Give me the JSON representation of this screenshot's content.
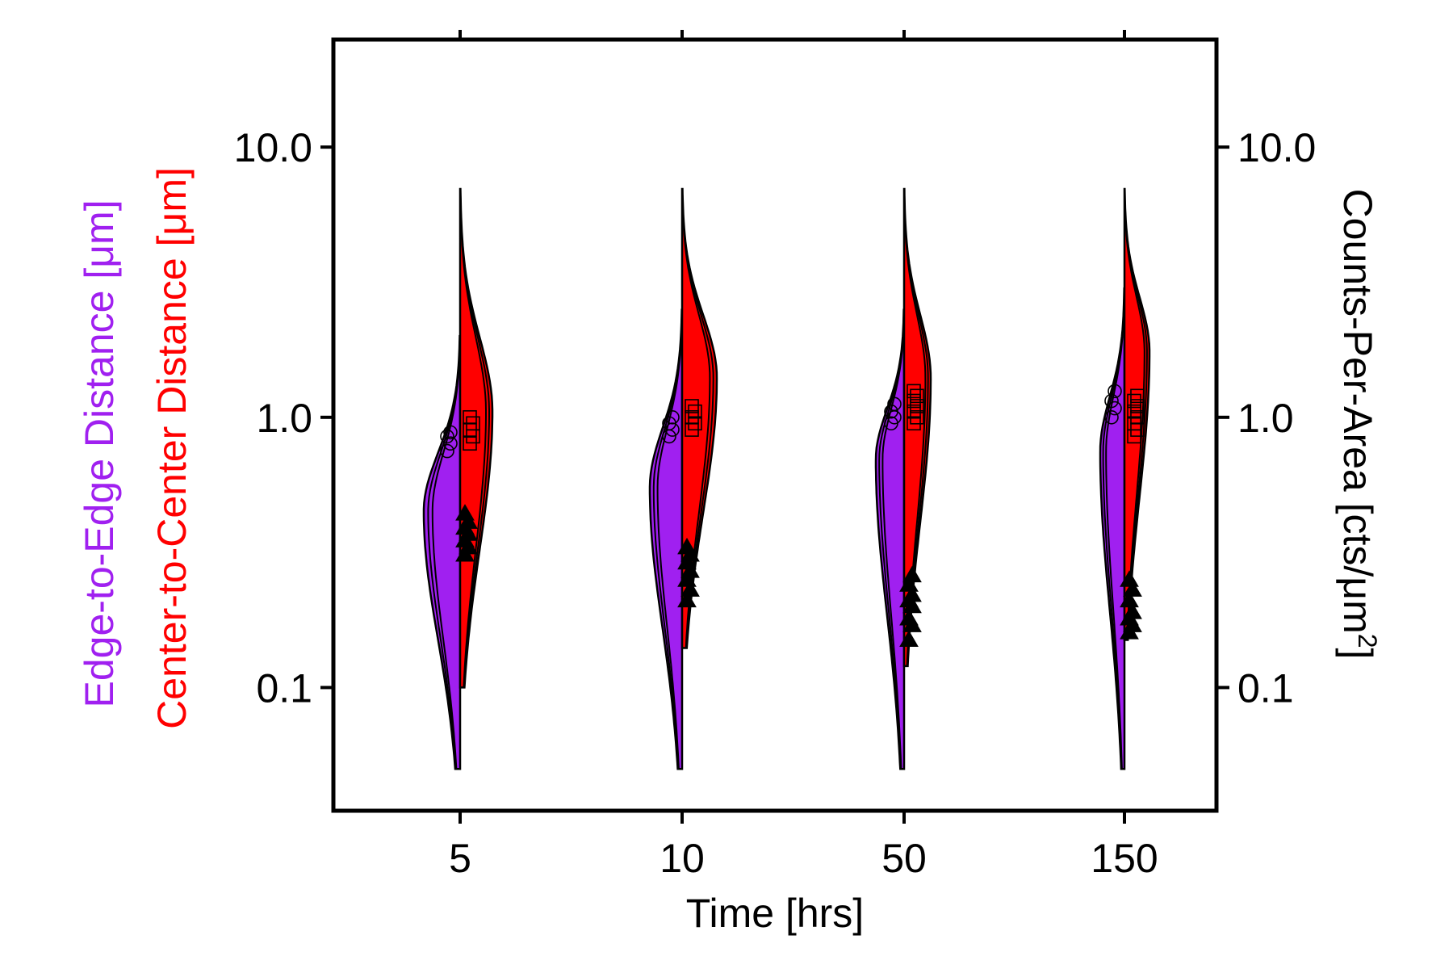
{
  "chart_data": {
    "type": "split violin with scatter markers",
    "xlabel": "Time [hrs]",
    "categories": [
      "5",
      "10",
      "50",
      "150"
    ],
    "ylabel_left_lines": [
      {
        "text": "Edge-to-Edge Distance [μm]",
        "color": "#a020f0"
      },
      {
        "text": "Center-to-Center Distance [μm]",
        "color": "#ff0000"
      }
    ],
    "ylabel_right": {
      "text": "Counts-Per-Area [cts/μm",
      "superscript": "2",
      "suffix": "]",
      "color": "#000000"
    },
    "yscale": "log",
    "ylim": [
      0.035,
      25
    ],
    "yticks": [
      {
        "value": 0.1,
        "label": "0.1"
      },
      {
        "value": 1,
        "label": "1.0"
      },
      {
        "value": 10,
        "label": "10.0"
      }
    ],
    "colors": {
      "edge": "#a020f0",
      "center": "#ff0000",
      "outline": "#000000",
      "markers": "#000000"
    },
    "violins": [
      {
        "category": "5",
        "edge": {
          "min": 0.05,
          "mode": 0.45,
          "max": 2.0,
          "peak_width": 0.45
        },
        "center": {
          "min": 0.1,
          "mode": 1.05,
          "max": 7.0,
          "peak_width": 0.4
        }
      },
      {
        "category": "10",
        "edge": {
          "min": 0.05,
          "mode": 0.55,
          "max": 2.5,
          "peak_width": 0.4
        },
        "center": {
          "min": 0.14,
          "mode": 1.4,
          "max": 7.0,
          "peak_width": 0.43
        }
      },
      {
        "category": "50",
        "edge": {
          "min": 0.05,
          "mode": 0.7,
          "max": 2.5,
          "peak_width": 0.35
        },
        "center": {
          "min": 0.12,
          "mode": 1.4,
          "max": 7.0,
          "peak_width": 0.33
        }
      },
      {
        "category": "150",
        "edge": {
          "min": 0.05,
          "mode": 0.75,
          "max": 3.0,
          "peak_width": 0.3
        },
        "center": {
          "min": 0.15,
          "mode": 1.75,
          "max": 7.0,
          "peak_width": 0.31
        }
      }
    ],
    "series": [
      {
        "marker": "circle",
        "axis": "left",
        "values": [
          [
            0.75,
            0.8,
            0.85,
            0.88
          ],
          [
            0.85,
            0.9,
            0.95,
            1.0
          ],
          [
            0.95,
            1.0,
            1.05,
            1.12
          ],
          [
            1.0,
            1.08,
            1.15,
            1.25
          ]
        ]
      },
      {
        "marker": "square",
        "axis": "left",
        "values": [
          [
            0.8,
            0.85,
            0.9,
            0.95,
            1.0
          ],
          [
            0.9,
            0.95,
            1.0,
            1.05,
            1.1
          ],
          [
            0.95,
            1.0,
            1.05,
            1.1,
            1.15,
            1.2,
            1.25
          ],
          [
            0.85,
            0.9,
            0.95,
            1.0,
            1.05,
            1.1,
            1.15,
            1.2
          ]
        ]
      },
      {
        "marker": "triangle",
        "axis": "right",
        "values": [
          [
            0.31,
            0.33,
            0.35,
            0.37,
            0.39,
            0.41,
            0.44
          ],
          [
            0.21,
            0.23,
            0.25,
            0.27,
            0.29,
            0.31,
            0.33
          ],
          [
            0.15,
            0.17,
            0.18,
            0.2,
            0.21,
            0.22,
            0.24,
            0.26
          ],
          [
            0.16,
            0.17,
            0.18,
            0.19,
            0.21,
            0.23,
            0.25
          ]
        ]
      }
    ]
  }
}
